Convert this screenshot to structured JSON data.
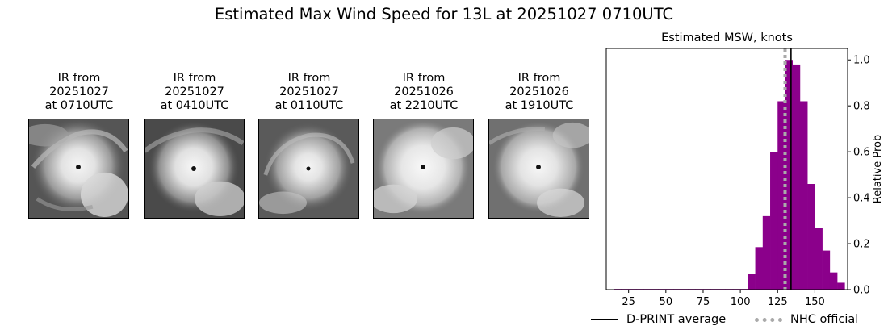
{
  "figure": {
    "title": "Estimated Max Wind Speed for 13L at 20251027 0710UTC"
  },
  "ir_panels": [
    {
      "line1": "IR from",
      "line2": "20251027",
      "line3": "at 0710UTC",
      "image_icon": "hurricane-ir-image-icon"
    },
    {
      "line1": "IR from",
      "line2": "20251027",
      "line3": "at 0410UTC",
      "image_icon": "hurricane-ir-image-icon"
    },
    {
      "line1": "IR from",
      "line2": "20251027",
      "line3": "at 0110UTC",
      "image_icon": "hurricane-ir-image-icon"
    },
    {
      "line1": "IR from",
      "line2": "20251026",
      "line3": "at 2210UTC",
      "image_icon": "hurricane-ir-image-icon"
    },
    {
      "line1": "IR from",
      "line2": "20251026",
      "line3": "at 1910UTC",
      "image_icon": "hurricane-ir-image-icon"
    }
  ],
  "chart_data": {
    "type": "bar",
    "title": "Estimated MSW, knots",
    "xlabel": "",
    "ylabel": "Relative Prob",
    "xlim": [
      10,
      172
    ],
    "ylim": [
      0,
      1.05
    ],
    "x_ticks": [
      25,
      50,
      75,
      100,
      125,
      150
    ],
    "y_ticks": [
      0.0,
      0.2,
      0.4,
      0.6,
      0.8,
      1.0
    ],
    "y_tick_labels": [
      "0.0",
      "0.2",
      "0.4",
      "0.6",
      "0.8",
      "1.0"
    ],
    "y_axis_side": "right",
    "bin_width": 5,
    "bin_starts": [
      15,
      20,
      25,
      30,
      35,
      40,
      45,
      50,
      55,
      60,
      65,
      70,
      75,
      80,
      85,
      90,
      95,
      100,
      105,
      110,
      115,
      120,
      125,
      130,
      135,
      140,
      145,
      150,
      155,
      160,
      165
    ],
    "values": [
      0.003,
      0.003,
      0.003,
      0.003,
      0.003,
      0.003,
      0.003,
      0.003,
      0.003,
      0.003,
      0.003,
      0.003,
      0.003,
      0.003,
      0.003,
      0.003,
      0.003,
      0.003,
      0.07,
      0.185,
      0.32,
      0.6,
      0.82,
      1.0,
      0.98,
      0.82,
      0.46,
      0.27,
      0.17,
      0.075,
      0.03
    ],
    "bar_color": "#8b008b",
    "dprint_average": 134,
    "nhc_official": 130,
    "dprint_color": "#000000",
    "nhc_color": "#aaaaaa",
    "legend": {
      "placement": "bottom",
      "entries": [
        {
          "label": "D-PRINT average",
          "style": "solid",
          "color": "#000000"
        },
        {
          "label": "NHC official",
          "style": "dotted",
          "color": "#aaaaaa"
        }
      ]
    }
  }
}
